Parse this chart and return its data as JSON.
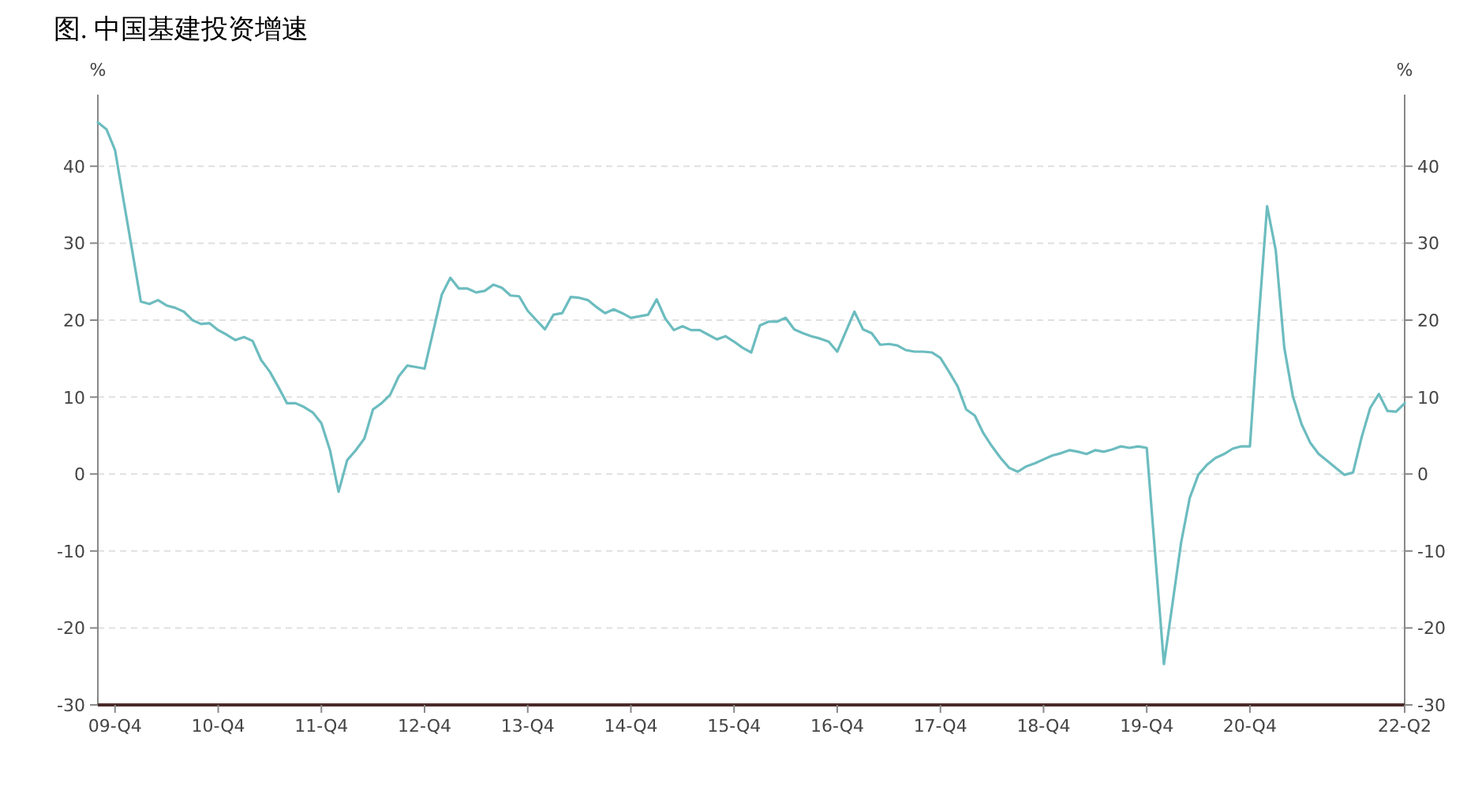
{
  "chart_data": {
    "type": "line",
    "title": "图. 中国基建投资增速",
    "ylabel": "%",
    "y2label": "%",
    "categories": [
      null,
      null,
      "09-Q4",
      null,
      null,
      null,
      null,
      null,
      null,
      null,
      null,
      null,
      null,
      null,
      "10-Q4",
      null,
      null,
      null,
      null,
      null,
      null,
      null,
      null,
      null,
      null,
      null,
      "11-Q4",
      null,
      null,
      null,
      null,
      null,
      null,
      null,
      null,
      null,
      null,
      null,
      "12-Q4",
      null,
      null,
      null,
      null,
      null,
      null,
      null,
      null,
      null,
      null,
      null,
      "13-Q4",
      null,
      null,
      null,
      null,
      null,
      null,
      null,
      null,
      null,
      null,
      null,
      "14-Q4",
      null,
      null,
      null,
      null,
      null,
      null,
      null,
      null,
      null,
      null,
      null,
      "15-Q4",
      null,
      null,
      null,
      null,
      null,
      null,
      null,
      null,
      null,
      null,
      null,
      "16-Q4",
      null,
      null,
      null,
      null,
      null,
      null,
      null,
      null,
      null,
      null,
      null,
      "17-Q4",
      null,
      null,
      null,
      null,
      null,
      null,
      null,
      null,
      null,
      null,
      null,
      "18-Q4",
      null,
      null,
      null,
      null,
      null,
      null,
      null,
      null,
      null,
      null,
      null,
      "19-Q4",
      null,
      null,
      null,
      null,
      null,
      null,
      null,
      null,
      null,
      null,
      null,
      "20-Q4",
      null,
      null,
      null,
      null,
      null,
      null,
      null,
      null,
      null,
      null,
      null,
      null,
      null,
      null,
      null,
      null,
      null,
      "22-Q2"
    ],
    "series": [
      {
        "color": "#6cbcbf",
        "values": [
          45.7,
          44.8,
          42.1,
          35.5,
          29.0,
          22.4,
          22.1,
          22.6,
          21.9,
          21.6,
          21.1,
          20.0,
          19.5,
          19.6,
          18.7,
          18.1,
          17.4,
          17.8,
          17.3,
          14.8,
          13.3,
          11.3,
          9.2,
          9.2,
          8.7,
          8.0,
          6.6,
          3.1,
          -2.3,
          1.8,
          3.1,
          4.6,
          8.4,
          9.2,
          10.3,
          12.7,
          14.1,
          13.9,
          13.7,
          18.5,
          23.3,
          25.5,
          24.1,
          24.1,
          23.6,
          23.8,
          24.6,
          24.2,
          23.2,
          23.1,
          21.2,
          20.0,
          18.8,
          20.7,
          20.9,
          23.0,
          22.9,
          22.6,
          21.7,
          20.9,
          21.4,
          20.9,
          20.3,
          20.5,
          20.7,
          22.7,
          20.2,
          18.7,
          19.2,
          18.7,
          18.7,
          18.1,
          17.5,
          17.9,
          17.2,
          16.4,
          15.8,
          19.3,
          19.8,
          19.8,
          20.3,
          18.8,
          18.3,
          17.9,
          17.6,
          17.2,
          15.9,
          18.5,
          21.1,
          18.8,
          18.3,
          16.8,
          16.9,
          16.7,
          16.1,
          15.9,
          15.9,
          15.8,
          15.1,
          13.3,
          11.4,
          8.4,
          7.6,
          5.3,
          3.6,
          2.1,
          0.8,
          0.3,
          1.0,
          1.4,
          1.9,
          2.4,
          2.7,
          3.1,
          2.9,
          2.6,
          3.1,
          2.9,
          3.2,
          3.6,
          3.4,
          3.6,
          3.4,
          -10.7,
          -24.7,
          -16.8,
          -8.9,
          -3.1,
          -0.1,
          1.2,
          2.1,
          2.6,
          3.3,
          3.6,
          3.6,
          19.7,
          34.8,
          29.1,
          16.4,
          10.1,
          6.5,
          4.1,
          2.6,
          1.7,
          0.8,
          -0.1,
          0.2,
          4.8,
          8.6,
          10.4,
          8.2,
          8.1,
          9.2
        ]
      }
    ],
    "ylim": [
      -30,
      49.3
    ],
    "yticks": [
      -30,
      -20,
      -10,
      0,
      10,
      20,
      30,
      40
    ],
    "y2lim": [
      -30,
      49.3
    ],
    "y2ticks": [
      -30,
      -20,
      -10,
      0,
      10,
      20,
      30,
      40
    ],
    "grid": "y"
  }
}
